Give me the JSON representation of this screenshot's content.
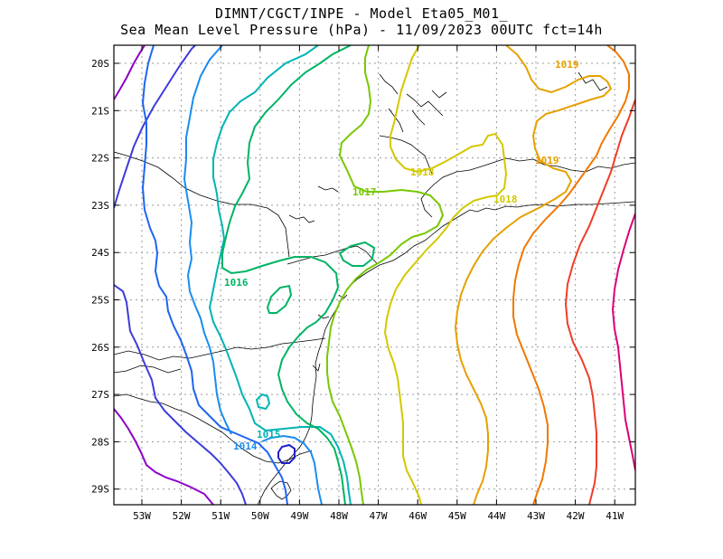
{
  "header": {
    "line1": "DIMNT/CGCT/INPE -  Model Eta05_M01_",
    "line2": "Sea Mean Level Pressure (hPa) - 11/09/2023 00UTC fct=14h"
  },
  "axes": {
    "lat_labels": [
      "20S",
      "21S",
      "22S",
      "23S",
      "24S",
      "25S",
      "26S",
      "27S",
      "28S",
      "29S"
    ],
    "lon_labels": [
      "53W",
      "52W",
      "51W",
      "50W",
      "49W",
      "48W",
      "47W",
      "46W",
      "45W",
      "44W",
      "43W",
      "42W",
      "41W"
    ]
  },
  "contour_labels": [
    {
      "text": "1014",
      "color": "#1a8cf0"
    },
    {
      "text": "1015",
      "color": "#00b4b4"
    },
    {
      "text": "1016",
      "color": "#00b464"
    },
    {
      "text": "1017",
      "color": "#78c800"
    },
    {
      "text": "1018",
      "color": "#d2c800"
    },
    {
      "text": "1018",
      "color": "#d2c800"
    },
    {
      "text": "1019",
      "color": "#e6a000"
    },
    {
      "text": "1019",
      "color": "#e6a000"
    }
  ],
  "colors": {
    "c1011": "#8c00c8",
    "c1012": "#3c3cdc",
    "c1013": "#1e64f0",
    "c1014": "#1a8cf0",
    "c1015": "#00b4b4",
    "c1016": "#00b464",
    "c1017": "#78c800",
    "c1018": "#d2c800",
    "c1019": "#e6a000",
    "c1020": "#f07800",
    "c1021": "#f03c28",
    "c1022": "#dc0078"
  }
}
